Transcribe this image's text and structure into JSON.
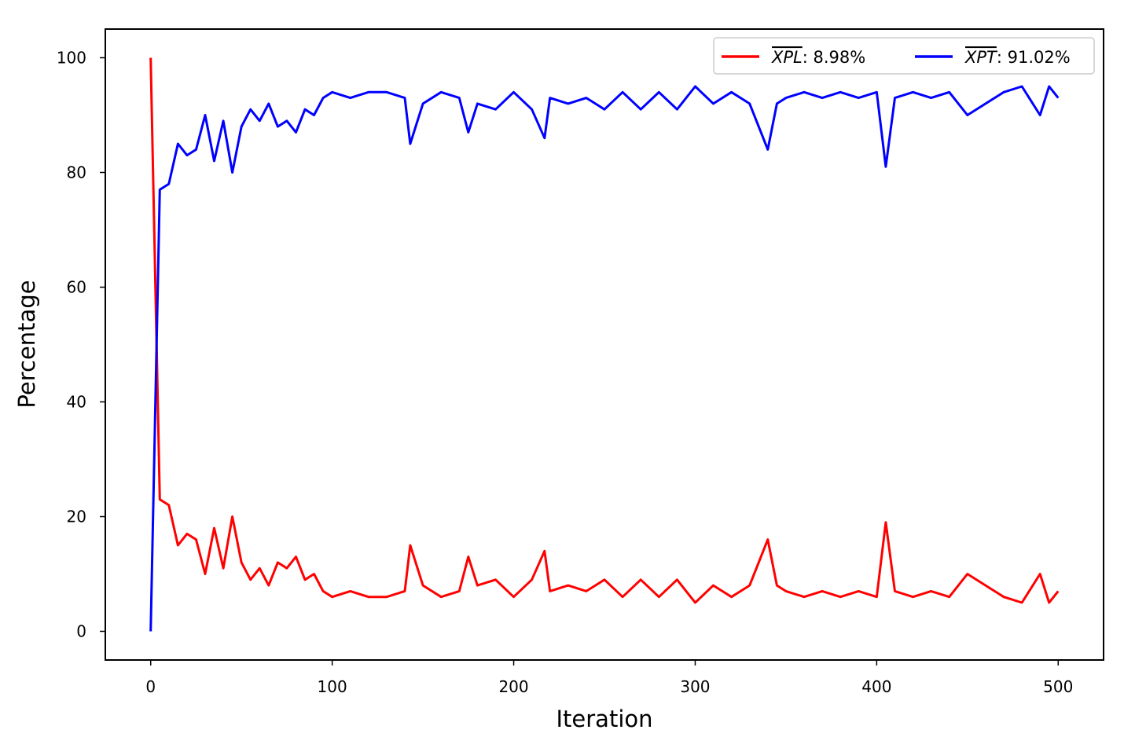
{
  "chart_data": {
    "type": "line",
    "title": "",
    "xlabel": "Iteration",
    "ylabel": "Percentage",
    "xlim": [
      -25,
      525
    ],
    "ylim": [
      -5,
      105
    ],
    "xticks": [
      0,
      100,
      200,
      300,
      400,
      500
    ],
    "yticks": [
      0,
      20,
      40,
      60,
      80,
      100
    ],
    "grid": false,
    "legend_position": "top-right",
    "series": [
      {
        "name": "XPL",
        "legend_suffix": ": 8.98%",
        "color": "#ff0000",
        "x": [
          0,
          5,
          10,
          15,
          20,
          25,
          30,
          35,
          40,
          45,
          50,
          55,
          60,
          65,
          70,
          75,
          80,
          85,
          90,
          95,
          100,
          110,
          120,
          130,
          140,
          143,
          150,
          160,
          170,
          175,
          180,
          190,
          200,
          210,
          217,
          220,
          230,
          240,
          250,
          260,
          270,
          280,
          290,
          300,
          310,
          320,
          330,
          340,
          345,
          350,
          360,
          370,
          380,
          390,
          400,
          405,
          410,
          420,
          430,
          440,
          450,
          460,
          470,
          480,
          490,
          495,
          500
        ],
        "values": [
          100,
          23,
          22,
          15,
          17,
          16,
          10,
          18,
          11,
          20,
          12,
          9,
          11,
          8,
          12,
          11,
          13,
          9,
          10,
          7,
          6,
          7,
          6,
          6,
          7,
          15,
          8,
          6,
          7,
          13,
          8,
          9,
          6,
          9,
          14,
          7,
          8,
          7,
          9,
          6,
          9,
          6,
          9,
          5,
          8,
          6,
          8,
          16,
          8,
          7,
          6,
          7,
          6,
          7,
          6,
          19,
          7,
          6,
          7,
          6,
          10,
          8,
          6,
          5,
          10,
          5,
          7
        ]
      },
      {
        "name": "XPT",
        "legend_suffix": ": 91.02%",
        "color": "#0000ff",
        "x": [
          0,
          5,
          10,
          15,
          20,
          25,
          30,
          35,
          40,
          45,
          50,
          55,
          60,
          65,
          70,
          75,
          80,
          85,
          90,
          95,
          100,
          110,
          120,
          130,
          140,
          143,
          150,
          160,
          170,
          175,
          180,
          190,
          200,
          210,
          217,
          220,
          230,
          240,
          250,
          260,
          270,
          280,
          290,
          300,
          310,
          320,
          330,
          340,
          345,
          350,
          360,
          370,
          380,
          390,
          400,
          405,
          410,
          420,
          430,
          440,
          450,
          460,
          470,
          480,
          490,
          495,
          500
        ],
        "values": [
          0,
          77,
          78,
          85,
          83,
          84,
          90,
          82,
          89,
          80,
          88,
          91,
          89,
          92,
          88,
          89,
          87,
          91,
          90,
          93,
          94,
          93,
          94,
          94,
          93,
          85,
          92,
          94,
          93,
          87,
          92,
          91,
          94,
          91,
          86,
          93,
          92,
          93,
          91,
          94,
          91,
          94,
          91,
          95,
          92,
          94,
          92,
          84,
          92,
          93,
          94,
          93,
          94,
          93,
          94,
          81,
          93,
          94,
          93,
          94,
          90,
          92,
          94,
          95,
          90,
          95,
          93
        ]
      }
    ]
  }
}
